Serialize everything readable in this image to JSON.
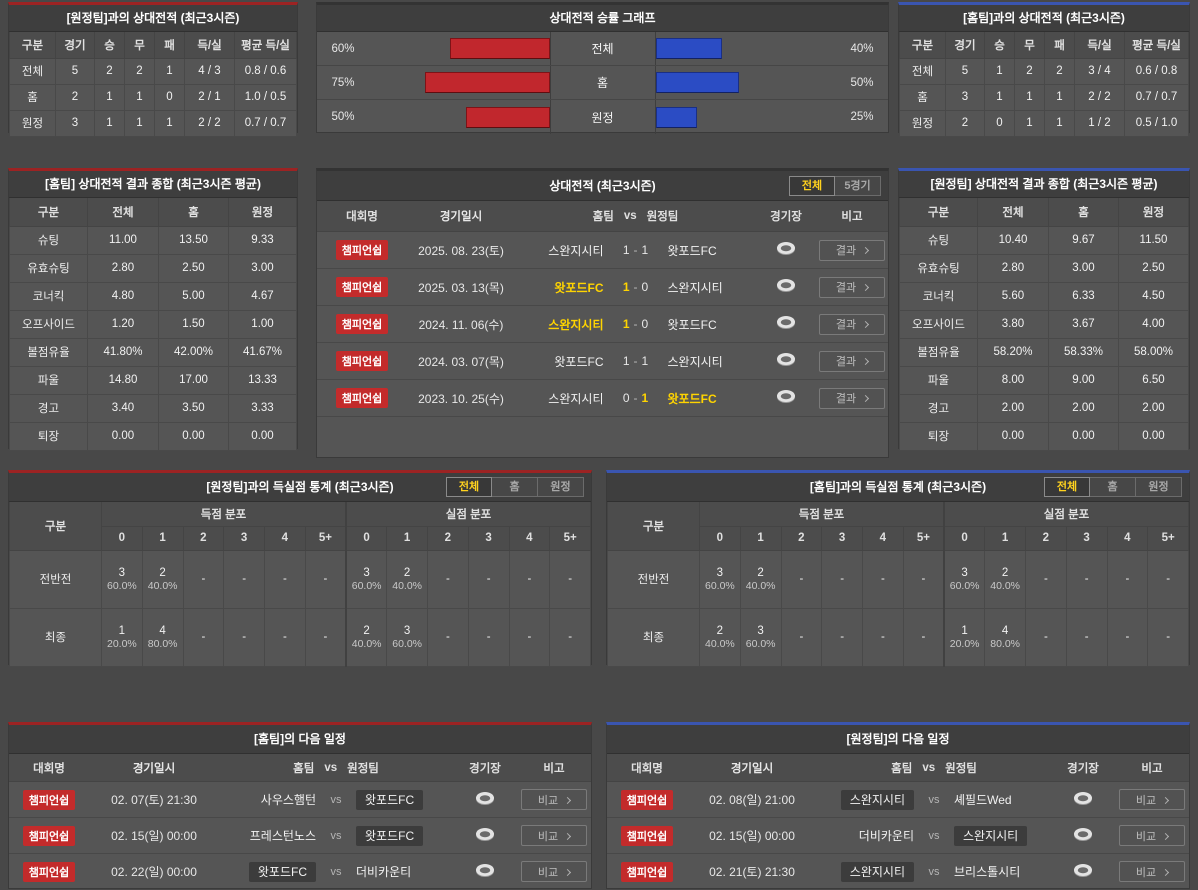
{
  "colors": {
    "home_accent": "#9c2323",
    "away_accent": "#3a55b0",
    "bar_red": "#c1272d",
    "bar_blue": "#2b4cc4",
    "highlight_yellow": "#ffd400",
    "badge_red": "#c32b2b"
  },
  "h2h_vs_away": {
    "title": "[원정팀]과의 상대전적 (최근3시즌)",
    "headers": [
      "구분",
      "경기",
      "승",
      "무",
      "패",
      "득/실",
      "평균 득/실"
    ],
    "rows": [
      {
        "label": "전체",
        "games": "5",
        "win": "2",
        "draw": "2",
        "loss": "1",
        "goals": "4 / 3",
        "avg": "0.8 / 0.6"
      },
      {
        "label": "홈",
        "games": "2",
        "win": "1",
        "draw": "1",
        "loss": "0",
        "goals": "2 / 1",
        "avg": "1.0 / 0.5"
      },
      {
        "label": "원정",
        "games": "3",
        "win": "1",
        "draw": "1",
        "loss": "1",
        "goals": "2 / 2",
        "avg": "0.7 / 0.7"
      }
    ]
  },
  "h2h_vs_home": {
    "title": "[홈팀]과의 상대전적 (최근3시즌)",
    "headers": [
      "구분",
      "경기",
      "승",
      "무",
      "패",
      "득/실",
      "평균 득/실"
    ],
    "rows": [
      {
        "label": "전체",
        "games": "5",
        "win": "1",
        "draw": "2",
        "loss": "2",
        "goals": "3 / 4",
        "avg": "0.6 / 0.8"
      },
      {
        "label": "홈",
        "games": "3",
        "win": "1",
        "draw": "1",
        "loss": "1",
        "goals": "2 / 2",
        "avg": "0.7 / 0.7"
      },
      {
        "label": "원정",
        "games": "2",
        "win": "0",
        "draw": "1",
        "loss": "1",
        "goals": "1 / 2",
        "avg": "0.5 / 1.0"
      }
    ]
  },
  "win_rate_chart": {
    "type": "bar",
    "title": "상대전적 승률 그래프",
    "categories": [
      "전체",
      "홈",
      "원정"
    ],
    "series": [
      {
        "name": "home-team-win-rate",
        "color": "#c1272d",
        "values": [
          60,
          75,
          50
        ]
      },
      {
        "name": "away-team-win-rate",
        "color": "#2b4cc4",
        "values": [
          40,
          50,
          25
        ]
      }
    ],
    "rows": [
      {
        "label": "전체",
        "left": "60%",
        "left_pct": 60,
        "right": "40%",
        "right_pct": 40
      },
      {
        "label": "홈",
        "left": "75%",
        "left_pct": 75,
        "right": "50%",
        "right_pct": 50
      },
      {
        "label": "원정",
        "left": "50%",
        "left_pct": 50,
        "right": "25%",
        "right_pct": 25
      }
    ]
  },
  "home_summary": {
    "title": "[홈팀] 상대전적 결과 종합 (최근3시즌 평균)",
    "headers": [
      "구분",
      "전체",
      "홈",
      "원정"
    ],
    "rows": [
      {
        "label": "슈팅",
        "all": "11.00",
        "home": "13.50",
        "away": "9.33"
      },
      {
        "label": "유효슈팅",
        "all": "2.80",
        "home": "2.50",
        "away": "3.00"
      },
      {
        "label": "코너킥",
        "all": "4.80",
        "home": "5.00",
        "away": "4.67"
      },
      {
        "label": "오프사이드",
        "all": "1.20",
        "home": "1.50",
        "away": "1.00"
      },
      {
        "label": "볼점유율",
        "all": "41.80%",
        "home": "42.00%",
        "away": "41.67%"
      },
      {
        "label": "파울",
        "all": "14.80",
        "home": "17.00",
        "away": "13.33"
      },
      {
        "label": "경고",
        "all": "3.40",
        "home": "3.50",
        "away": "3.33"
      },
      {
        "label": "퇴장",
        "all": "0.00",
        "home": "0.00",
        "away": "0.00"
      }
    ]
  },
  "away_summary": {
    "title": "[원정팀] 상대전적 결과 종합 (최근3시즌 평균)",
    "headers": [
      "구분",
      "전체",
      "홈",
      "원정"
    ],
    "rows": [
      {
        "label": "슈팅",
        "all": "10.40",
        "home": "9.67",
        "away": "11.50"
      },
      {
        "label": "유효슈팅",
        "all": "2.80",
        "home": "3.00",
        "away": "2.50"
      },
      {
        "label": "코너킥",
        "all": "5.60",
        "home": "6.33",
        "away": "4.50"
      },
      {
        "label": "오프사이드",
        "all": "3.80",
        "home": "3.67",
        "away": "4.00"
      },
      {
        "label": "볼점유율",
        "all": "58.20%",
        "home": "58.33%",
        "away": "58.00%"
      },
      {
        "label": "파울",
        "all": "8.00",
        "home": "9.00",
        "away": "6.50"
      },
      {
        "label": "경고",
        "all": "2.00",
        "home": "2.00",
        "away": "2.00"
      },
      {
        "label": "퇴장",
        "all": "0.00",
        "home": "0.00",
        "away": "0.00"
      }
    ]
  },
  "h2h_matches": {
    "title": "상대전적 (최근3시즌)",
    "tabs": [
      {
        "label": "전체",
        "active": true
      },
      {
        "label": "5경기",
        "active": false
      }
    ],
    "headers": {
      "league": "대회명",
      "date": "경기일시",
      "home": "홈팀",
      "vs": "vs",
      "away": "원정팀",
      "stadium": "경기장",
      "note": "비고"
    },
    "score_sep": "-",
    "result_button": "결과",
    "rows": [
      {
        "league": "챔피언쉽",
        "date": "2025. 08. 23(토)",
        "home": "스완지시티",
        "home_score": "1",
        "away_score": "1",
        "away": "왓포드FC",
        "winner": "none"
      },
      {
        "league": "챔피언쉽",
        "date": "2025. 03. 13(목)",
        "home": "왓포드FC",
        "home_score": "1",
        "away_score": "0",
        "away": "스완지시티",
        "winner": "home"
      },
      {
        "league": "챔피언쉽",
        "date": "2024. 11. 06(수)",
        "home": "스완지시티",
        "home_score": "1",
        "away_score": "0",
        "away": "왓포드FC",
        "winner": "home"
      },
      {
        "league": "챔피언쉽",
        "date": "2024. 03. 07(목)",
        "home": "왓포드FC",
        "home_score": "1",
        "away_score": "1",
        "away": "스완지시티",
        "winner": "none"
      },
      {
        "league": "챔피언쉽",
        "date": "2023. 10. 25(수)",
        "home": "스완지시티",
        "home_score": "0",
        "away_score": "1",
        "away": "왓포드FC",
        "winner": "away"
      }
    ]
  },
  "goal_stats_vs_away": {
    "title": "[원정팀]과의 득실점 통계 (최근3시즌)",
    "tabs": [
      {
        "label": "전체",
        "active": true
      },
      {
        "label": "홈",
        "active": false
      },
      {
        "label": "원정",
        "active": false
      }
    ],
    "col_label": "구분",
    "groups": [
      "득점 분포",
      "실점 분포"
    ],
    "bins": [
      "0",
      "1",
      "2",
      "3",
      "4",
      "5+"
    ],
    "rows": [
      {
        "label": "전반전",
        "scored": [
          {
            "n": "3",
            "p": "60.0%"
          },
          {
            "n": "2",
            "p": "40.0%"
          },
          {
            "n": "-",
            "p": ""
          },
          {
            "n": "-",
            "p": ""
          },
          {
            "n": "-",
            "p": ""
          },
          {
            "n": "-",
            "p": ""
          }
        ],
        "conceded": [
          {
            "n": "3",
            "p": "60.0%"
          },
          {
            "n": "2",
            "p": "40.0%"
          },
          {
            "n": "-",
            "p": ""
          },
          {
            "n": "-",
            "p": ""
          },
          {
            "n": "-",
            "p": ""
          },
          {
            "n": "-",
            "p": ""
          }
        ]
      },
      {
        "label": "최종",
        "scored": [
          {
            "n": "1",
            "p": "20.0%"
          },
          {
            "n": "4",
            "p": "80.0%"
          },
          {
            "n": "-",
            "p": ""
          },
          {
            "n": "-",
            "p": ""
          },
          {
            "n": "-",
            "p": ""
          },
          {
            "n": "-",
            "p": ""
          }
        ],
        "conceded": [
          {
            "n": "2",
            "p": "40.0%"
          },
          {
            "n": "3",
            "p": "60.0%"
          },
          {
            "n": "-",
            "p": ""
          },
          {
            "n": "-",
            "p": ""
          },
          {
            "n": "-",
            "p": ""
          },
          {
            "n": "-",
            "p": ""
          }
        ]
      }
    ]
  },
  "goal_stats_vs_home": {
    "title": "[홈팀]과의 득실점 통계 (최근3시즌)",
    "tabs": [
      {
        "label": "전체",
        "active": true
      },
      {
        "label": "홈",
        "active": false
      },
      {
        "label": "원정",
        "active": false
      }
    ],
    "col_label": "구분",
    "groups": [
      "득점 분포",
      "실점 분포"
    ],
    "bins": [
      "0",
      "1",
      "2",
      "3",
      "4",
      "5+"
    ],
    "rows": [
      {
        "label": "전반전",
        "scored": [
          {
            "n": "3",
            "p": "60.0%"
          },
          {
            "n": "2",
            "p": "40.0%"
          },
          {
            "n": "-",
            "p": ""
          },
          {
            "n": "-",
            "p": ""
          },
          {
            "n": "-",
            "p": ""
          },
          {
            "n": "-",
            "p": ""
          }
        ],
        "conceded": [
          {
            "n": "3",
            "p": "60.0%"
          },
          {
            "n": "2",
            "p": "40.0%"
          },
          {
            "n": "-",
            "p": ""
          },
          {
            "n": "-",
            "p": ""
          },
          {
            "n": "-",
            "p": ""
          },
          {
            "n": "-",
            "p": ""
          }
        ]
      },
      {
        "label": "최종",
        "scored": [
          {
            "n": "2",
            "p": "40.0%"
          },
          {
            "n": "3",
            "p": "60.0%"
          },
          {
            "n": "-",
            "p": ""
          },
          {
            "n": "-",
            "p": ""
          },
          {
            "n": "-",
            "p": ""
          },
          {
            "n": "-",
            "p": ""
          }
        ],
        "conceded": [
          {
            "n": "1",
            "p": "20.0%"
          },
          {
            "n": "4",
            "p": "80.0%"
          },
          {
            "n": "-",
            "p": ""
          },
          {
            "n": "-",
            "p": ""
          },
          {
            "n": "-",
            "p": ""
          },
          {
            "n": "-",
            "p": ""
          }
        ]
      }
    ]
  },
  "home_schedule": {
    "title": "[홈팀]의 다음 일정",
    "headers": {
      "league": "대회명",
      "date": "경기일시",
      "home": "홈팀",
      "vs": "vs",
      "away": "원정팀",
      "stadium": "경기장",
      "note": "비고"
    },
    "vs_label": "vs",
    "compare_button": "비교",
    "rows": [
      {
        "league": "챔피언쉽",
        "date": "02. 07(토) 21:30",
        "home": "사우스햄턴",
        "away": "왓포드FC",
        "focus": "away"
      },
      {
        "league": "챔피언쉽",
        "date": "02. 15(일) 00:00",
        "home": "프레스턴노스",
        "away": "왓포드FC",
        "focus": "away"
      },
      {
        "league": "챔피언쉽",
        "date": "02. 22(일) 00:00",
        "home": "왓포드FC",
        "away": "더비카운티",
        "focus": "home"
      }
    ]
  },
  "away_schedule": {
    "title": "[원정팀]의 다음 일정",
    "headers": {
      "league": "대회명",
      "date": "경기일시",
      "home": "홈팀",
      "vs": "vs",
      "away": "원정팀",
      "stadium": "경기장",
      "note": "비고"
    },
    "vs_label": "vs",
    "compare_button": "비교",
    "rows": [
      {
        "league": "챔피언쉽",
        "date": "02. 08(일) 21:00",
        "home": "스완지시티",
        "away": "셰필드Wed",
        "focus": "home"
      },
      {
        "league": "챔피언쉽",
        "date": "02. 15(일) 00:00",
        "home": "더비카운티",
        "away": "스완지시티",
        "focus": "away"
      },
      {
        "league": "챔피언쉽",
        "date": "02. 21(토) 21:30",
        "home": "스완지시티",
        "away": "브리스톨시티",
        "focus": "home"
      }
    ]
  }
}
